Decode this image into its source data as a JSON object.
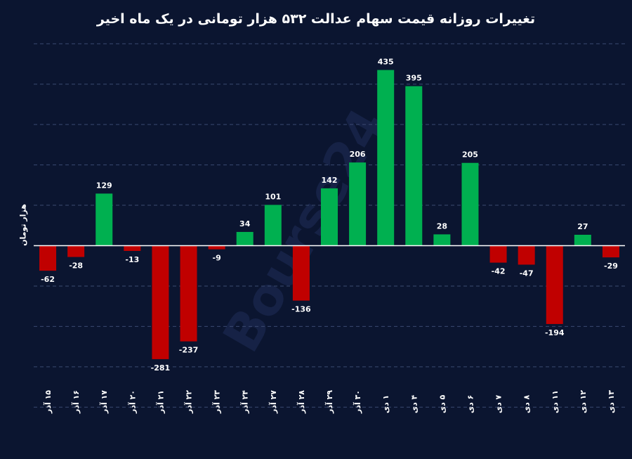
{
  "chart_data": {
    "type": "bar",
    "title": "تغییرات روزانه قیمت سهام عدالت ۵۳۲ هزار تومانی در یک ماه اخیر",
    "xlabel": "",
    "ylabel": "هزار تومان",
    "categories": [
      "۱۵ آذر",
      "۱۶ آذر",
      "۱۷ آذر",
      "۲۰ آذر",
      "۲۱ آذر",
      "۲۲ آذر",
      "۲۳ آذر",
      "۲۴ آذر",
      "۲۷ آذر",
      "۲۸ آذر",
      "۲۹ آذر",
      "۳۰ آذر",
      "۱ دی",
      "۴ دی",
      "۵ دی",
      "۶ دی",
      "۷ دی",
      "۸ دی",
      "۱۱ دی",
      "۱۲ دی",
      "۱۳ دی"
    ],
    "values": [
      -62,
      -28,
      129,
      -13,
      -281,
      -237,
      -9,
      34,
      101,
      -136,
      142,
      206,
      435,
      395,
      28,
      205,
      -42,
      -47,
      -194,
      27,
      -29
    ],
    "ylim": [
      -400,
      500
    ],
    "gridlines": [
      -400,
      -300,
      -200,
      -100,
      100,
      200,
      300,
      400,
      500
    ],
    "grid": true,
    "legend": "none",
    "positive_color": "#00b050",
    "negative_color": "#c00000",
    "watermark": "Bourse24"
  }
}
